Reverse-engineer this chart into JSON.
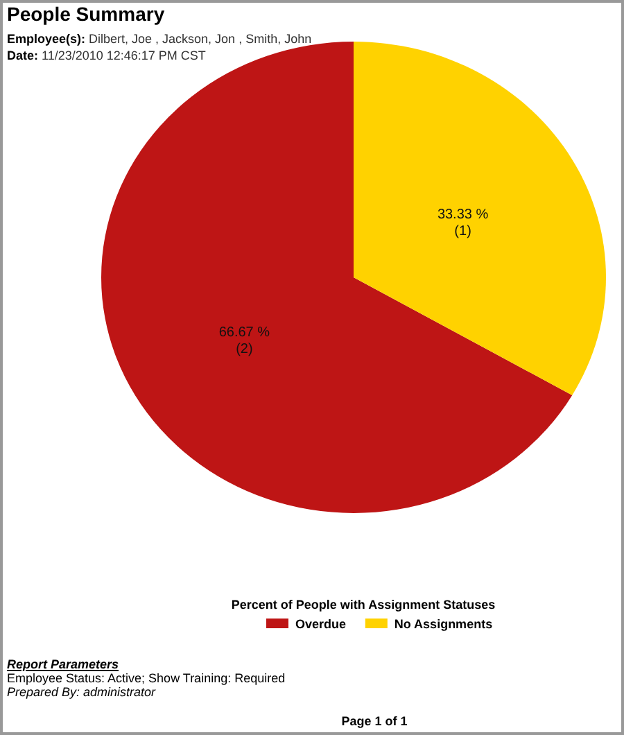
{
  "chart_data": {
    "type": "pie",
    "title": "People Summary",
    "subtitle": "Employee(s): Dilbert, Joe , Jackson, Jon , Smith, John",
    "categories": [
      "Overdue",
      "No Assignments"
    ],
    "values": [
      66.67,
      33.33
    ],
    "colors": [
      "#be1515",
      "#ffd200"
    ],
    "value_labels": [
      "66.67 %\n(2)",
      "33.33 %\n(1)"
    ],
    "legend_title": "Percent of People with Assignment Statuses",
    "legend": "bottom",
    "annotations": [
      "Date: 11/23/2010 12:46:17 PM CST",
      "Report Parameters",
      "Employee Status: Active; Show Training: Required",
      "Prepared By: administrator",
      "Page 1 of 1"
    ]
  }
}
